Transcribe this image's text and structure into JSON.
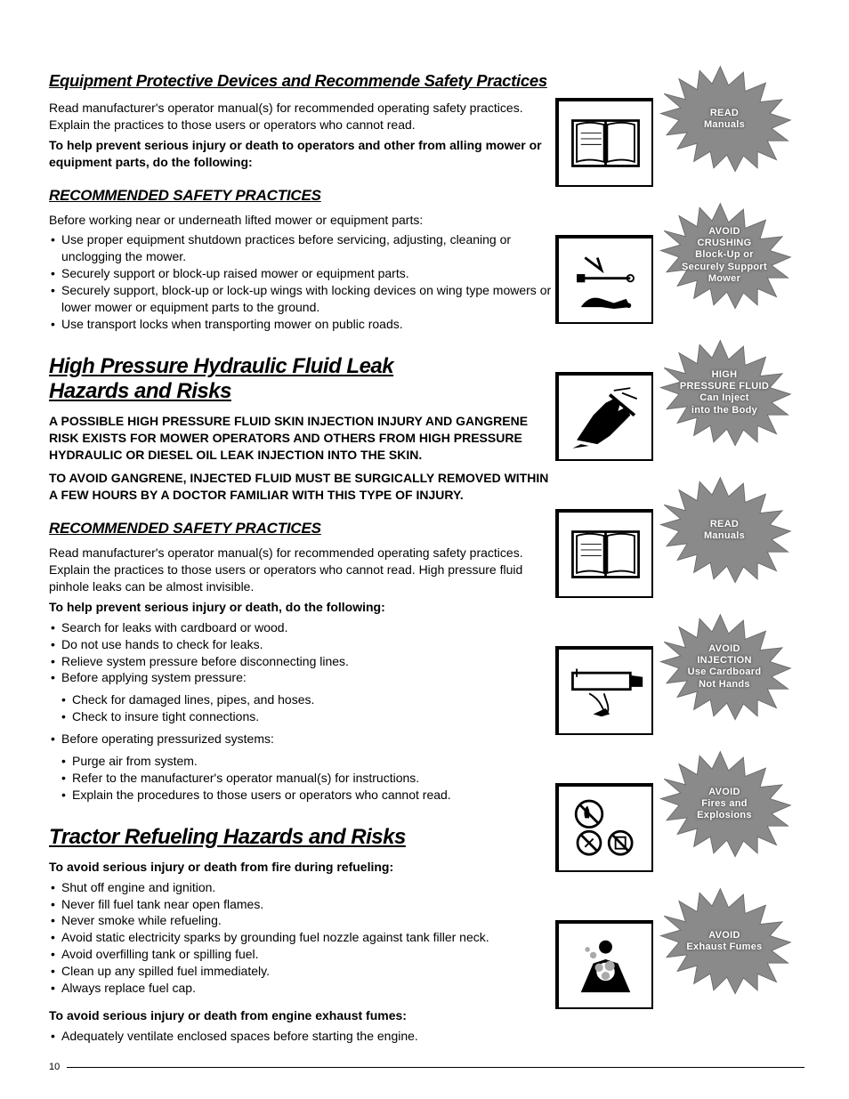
{
  "page_number": "10",
  "section1": {
    "title": "Equipment Protective Devices and Recommende Safety Practices",
    "intro": "Read manufacturer's operator manual(s) for recommended operating safety practices. Explain the practices to those users or operators who cannot read.",
    "intro_bold": "To help prevent serious injury or death to operators and other from alling mower or equipment parts, do the following:",
    "sub_title": "RECOMMENDED SAFETY PRACTICES",
    "sub_intro": "Before working near or underneath lifted mower or equipment parts:",
    "bullets": [
      "Use proper equipment shutdown practices before servicing, adjusting, cleaning or unclogging the mower.",
      "Securely support or block-up raised mower or equipment parts.",
      "Securely support, block-up or lock-up wings with locking devices on wing type mowers or lower mower or equipment parts to the ground.",
      "Use transport locks when transporting mower on public roads."
    ]
  },
  "section2": {
    "title_line1": "High Pressure Hydraulic Fluid Leak",
    "title_line2": "Hazards and Risks",
    "warn1": "A POSSIBLE HIGH PRESSURE FLUID SKIN INJECTION INJURY AND GANGRENE RISK EXISTS FOR MOWER OPERATORS AND OTHERS FROM HIGH PRESSURE HYDRAULIC OR DIESEL OIL LEAK INJECTION INTO THE SKIN.",
    "warn2": "TO AVOID GANGRENE, INJECTED FLUID MUST BE SURGICALLY REMOVED WITHIN A FEW HOURS BY A DOCTOR FAMILIAR WITH THIS TYPE OF INJURY.",
    "sub_title": "RECOMMENDED SAFETY PRACTICES",
    "sub_intro": "Read manufacturer's operator manual(s) for recommended operating safety practices. Explain the practices to those users or operators who cannot read. High pressure fluid pinhole leaks can be almost invisible.",
    "intro_bold": "To help prevent serious injury or death, do the following:",
    "bullets_a": [
      "Search for leaks with cardboard or wood.",
      "Do not use hands to check for leaks.",
      "Relieve system pressure before disconnecting lines.",
      "Before applying system pressure:"
    ],
    "bullets_a_sub": [
      "Check for damaged lines, pipes, and hoses.",
      "Check to insure tight connections."
    ],
    "bullets_b": [
      "Before operating pressurized systems:"
    ],
    "bullets_b_sub": [
      "Purge air from system.",
      "Refer to the manufacturer's operator manual(s) for instructions.",
      "Explain the procedures to those users or operators who cannot read."
    ]
  },
  "section3": {
    "title": "Tractor Refueling Hazards and Risks",
    "intro_bold": "To avoid serious injury or death from fire during refueling:",
    "bullets": [
      "Shut off engine and ignition.",
      "Never fill fuel tank near open flames.",
      "Never smoke while refueling.",
      "Avoid static electricity sparks by grounding fuel nozzle against tank filler neck.",
      "Avoid overfilling tank or spilling fuel.",
      "Clean up any spilled fuel immediately.",
      "Always replace fuel cap."
    ],
    "intro_bold2": "To avoid serious injury or death from engine exhaust fumes:",
    "bullets2": [
      "Adequately ventilate enclosed spaces before starting the engine."
    ]
  },
  "hazards": [
    {
      "lines": [
        "READ",
        "Manuals"
      ],
      "icon": "book"
    },
    {
      "lines": [
        "AVOID",
        "CRUSHING",
        "Block-Up or",
        "Securely Support",
        "Mower"
      ],
      "icon": "crush"
    },
    {
      "lines": [
        "HIGH",
        "PRESSURE FLUID",
        "Can Inject",
        "into the Body"
      ],
      "icon": "hand"
    },
    {
      "lines": [
        "READ",
        "Manuals"
      ],
      "icon": "book"
    },
    {
      "lines": [
        "AVOID",
        "INJECTION",
        "Use Cardboard",
        "Not Hands"
      ],
      "icon": "cardboard"
    },
    {
      "lines": [
        "AVOID",
        "Fires and",
        "Explosions"
      ],
      "icon": "fire"
    },
    {
      "lines": [
        "AVOID",
        "Exhaust Fumes"
      ],
      "icon": "fumes"
    }
  ],
  "colors": {
    "text": "#000000",
    "bg": "#ffffff",
    "star_fill": "#888888",
    "star_text": "#ffffff"
  }
}
